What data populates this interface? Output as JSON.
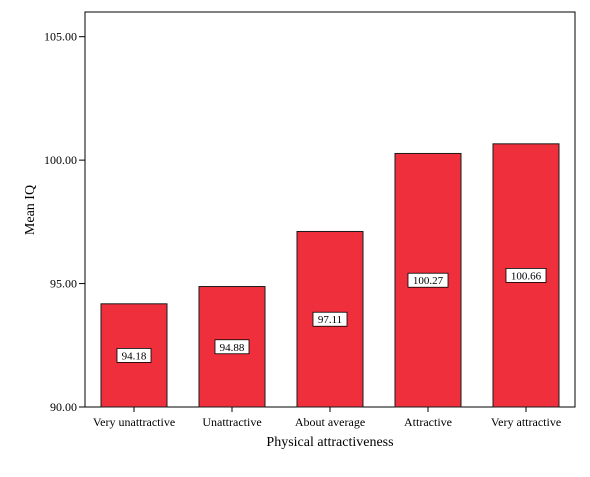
{
  "chart_data": {
    "type": "bar",
    "categories": [
      "Very unattractive",
      "Unattractive",
      "About average",
      "Attractive",
      "Very attractive"
    ],
    "values": [
      94.18,
      94.88,
      97.11,
      100.27,
      100.66
    ],
    "data_labels": [
      "94.18",
      "94.88",
      "97.11",
      "100.27",
      "100.66"
    ],
    "xlabel": "Physical attractiveness",
    "ylabel": "Mean IQ",
    "ylim": [
      90,
      106
    ],
    "yticks": [
      90,
      95,
      100,
      105
    ],
    "ytick_labels": [
      "90.00",
      "95.00",
      "100.00",
      "105.00"
    ],
    "grid": false,
    "legend": "none",
    "colors": {
      "bar_fill": "#ef2f3c",
      "bar_stroke": "#1a1a1a",
      "axis": "#000000",
      "label_box_fill": "#ffffff"
    }
  }
}
